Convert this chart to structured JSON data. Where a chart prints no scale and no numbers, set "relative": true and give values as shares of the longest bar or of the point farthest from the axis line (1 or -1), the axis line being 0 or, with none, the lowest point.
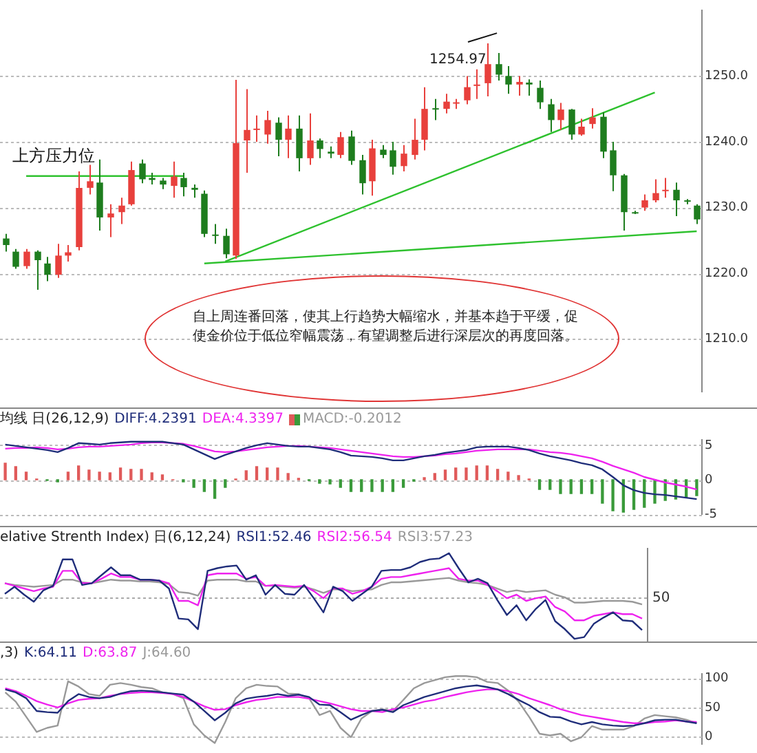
{
  "chart_data": [
    {
      "type": "candlestick",
      "grid": "y",
      "ylim": [
        1202,
        1260
      ],
      "yticks": [
        {
          "value": 1210,
          "label": "1210.0"
        },
        {
          "value": 1220,
          "label": "1220.0"
        },
        {
          "value": 1230,
          "label": "1230.0"
        },
        {
          "value": 1240,
          "label": "1240.0"
        },
        {
          "value": 1250,
          "label": "1250.0"
        }
      ],
      "categories": [
        null,
        null,
        null,
        null,
        null,
        null,
        null,
        null,
        null,
        null,
        null,
        null,
        null,
        null,
        null,
        null,
        null,
        null,
        null,
        null,
        null,
        null,
        null,
        null,
        null,
        null,
        null,
        null,
        null,
        null,
        null,
        null,
        null,
        null,
        null,
        null,
        null,
        null,
        null,
        null,
        null,
        null,
        null,
        null,
        null,
        null,
        null,
        null,
        null,
        null,
        null,
        null,
        null,
        null,
        null,
        null,
        null,
        null,
        null,
        null,
        null,
        null,
        null,
        null,
        null,
        null,
        null
      ],
      "ohlc": [
        [
          1225.3,
          1226,
          1223.3,
          1224.3
        ],
        [
          1223.3,
          1223.7,
          1220.7,
          1221
        ],
        [
          1221.1,
          1223.7,
          1220.7,
          1223.3
        ],
        [
          1223.3,
          1223.5,
          1217.5,
          1222
        ],
        [
          1221.5,
          1222.5,
          1218.8,
          1219.8
        ],
        [
          1219.8,
          1224.5,
          1219.3,
          1222.7
        ],
        [
          1222.7,
          1224.3,
          1221.8,
          1223.2
        ],
        [
          1224,
          1235.5,
          1223.5,
          1233
        ],
        [
          1233,
          1236.5,
          1232,
          1234
        ],
        [
          1233.8,
          1237.3,
          1226.5,
          1228.5
        ],
        [
          1228.5,
          1230.5,
          1225.5,
          1229.1
        ],
        [
          1229.3,
          1231.5,
          1227.5,
          1230.3
        ],
        [
          1230.5,
          1237,
          1230.3,
          1235.7
        ],
        [
          1236.7,
          1237.3,
          1233.7,
          1234.3
        ],
        [
          1234.5,
          1235.3,
          1233.5,
          1234.2
        ],
        [
          1234.1,
          1234.5,
          1232.8,
          1233.5
        ],
        [
          1233.3,
          1237,
          1231.5,
          1234.7
        ],
        [
          1234.5,
          1235.3,
          1231.7,
          1233.1
        ],
        [
          1233,
          1233.5,
          1231.5,
          1232.7
        ],
        [
          1232.1,
          1232.6,
          1225.5,
          1226
        ],
        [
          1225.9,
          1227.5,
          1224.5,
          1225.7
        ],
        [
          1225.7,
          1226.8,
          1222.3,
          1222.9
        ],
        [
          1222.7,
          1249.4,
          1222.2,
          1239.8
        ],
        [
          1240.2,
          1248,
          1235.3,
          1241.8
        ],
        [
          1241.9,
          1244,
          1240,
          1242
        ],
        [
          1241.1,
          1244.7,
          1239.7,
          1243.3
        ],
        [
          1242.9,
          1243.7,
          1237.8,
          1240.3
        ],
        [
          1240.3,
          1244,
          1237.5,
          1242
        ],
        [
          1242,
          1244,
          1235.5,
          1237.5
        ],
        [
          1237.5,
          1244.3,
          1236.5,
          1240.2
        ],
        [
          1240.2,
          1240.5,
          1237.5,
          1238.9
        ],
        [
          1238.5,
          1239.3,
          1237.5,
          1238.2
        ],
        [
          1238,
          1241.5,
          1237.5,
          1240.7
        ],
        [
          1240.8,
          1241.7,
          1236.5,
          1237.1
        ],
        [
          1237.2,
          1238,
          1232,
          1233.7
        ],
        [
          1234,
          1240.3,
          1231.8,
          1239
        ],
        [
          1238.8,
          1239.5,
          1237.5,
          1238
        ],
        [
          1238.7,
          1240,
          1235,
          1236.2
        ],
        [
          1236.3,
          1239.5,
          1235.5,
          1238.2
        ],
        [
          1238,
          1243.5,
          1237.3,
          1240.3
        ],
        [
          1240.3,
          1248.3,
          1238.7,
          1245
        ],
        [
          1245.1,
          1246.5,
          1243.3,
          1245
        ],
        [
          1245,
          1247.3,
          1244.3,
          1246.1
        ],
        [
          1245.9,
          1246.5,
          1245,
          1246
        ],
        [
          1246.3,
          1250,
          1245.7,
          1248.3
        ],
        [
          1248.5,
          1251,
          1246.5,
          1248.7
        ],
        [
          1248.9,
          1254.97,
          1246.9,
          1251.8
        ],
        [
          1251.8,
          1253.5,
          1249.3,
          1250.2
        ],
        [
          1250,
          1251.5,
          1247.3,
          1248.7
        ],
        [
          1248.7,
          1250,
          1247,
          1249.1
        ],
        [
          1249,
          1249.5,
          1247,
          1248.7
        ],
        [
          1248.2,
          1249.3,
          1245,
          1246
        ],
        [
          1245.7,
          1246.5,
          1241.5,
          1243.3
        ],
        [
          1243.3,
          1245.9,
          1241.8,
          1244.9
        ],
        [
          1244.9,
          1245,
          1240.3,
          1241.1
        ],
        [
          1241.1,
          1243.5,
          1240.9,
          1242.3
        ],
        [
          1242.7,
          1245.1,
          1242,
          1243.7
        ],
        [
          1243.8,
          1244.5,
          1237.5,
          1238.5
        ],
        [
          1238.7,
          1240,
          1232.5,
          1234.9
        ],
        [
          1234.9,
          1235.1,
          1226.5,
          1229.3
        ],
        [
          1229.3,
          1229.5,
          1229,
          1229.1
        ],
        [
          1230,
          1232,
          1229.5,
          1231.1
        ],
        [
          1231.1,
          1234.3,
          1230.8,
          1232.2
        ],
        [
          1232.5,
          1234.5,
          1231.5,
          1232.7
        ],
        [
          1232.7,
          1233.8,
          1228.7,
          1231.1
        ],
        [
          1231.1,
          1231.3,
          1230.5,
          1230.9
        ],
        [
          1230.3,
          1230.5,
          1227.5,
          1228.2
        ]
      ],
      "colors": [
        "#1e7d1e",
        "#1e7d1e",
        "#e8403c",
        "#1e7d1e",
        "#1e7d1e",
        "#e8403c",
        "#e8403c",
        "#e8403c",
        "#e8403c",
        "#1e7d1e",
        "#e8403c",
        "#e8403c",
        "#e8403c",
        "#1e7d1e",
        "#1e7d1e",
        "#1e7d1e",
        "#e8403c",
        "#1e7d1e",
        "#1e7d1e",
        "#1e7d1e",
        "#1e7d1e",
        "#1e7d1e",
        "#e8403c",
        "#e8403c",
        "#e8403c",
        "#e8403c",
        "#1e7d1e",
        "#e8403c",
        "#1e7d1e",
        "#e8403c",
        "#1e7d1e",
        "#1e7d1e",
        "#e8403c",
        "#1e7d1e",
        "#1e7d1e",
        "#e8403c",
        "#1e7d1e",
        "#1e7d1e",
        "#e8403c",
        "#e8403c",
        "#e8403c",
        "#1e7d1e",
        "#e8403c",
        "#e8403c",
        "#e8403c",
        "#e8403c",
        "#e8403c",
        "#1e7d1e",
        "#1e7d1e",
        "#e8403c",
        "#1e7d1e",
        "#1e7d1e",
        "#1e7d1e",
        "#e8403c",
        "#1e7d1e",
        "#e8403c",
        "#e8403c",
        "#1e7d1e",
        "#1e7d1e",
        "#1e7d1e",
        "#1e7d1e",
        "#e8403c",
        "#e8403c",
        "#e8403c",
        "#1e7d1e",
        "#1e7d1e",
        "#1e7d1e"
      ],
      "marker": "none",
      "series": [
        {
          "type": "line",
          "color": "#2ec12e",
          "values": [
            null,
            null,
            1234.8,
            null,
            null,
            null,
            null,
            null,
            null,
            null,
            null,
            null,
            null,
            null,
            null,
            null,
            null,
            1234.8,
            null,
            null,
            null,
            null,
            null,
            null,
            null,
            null,
            null,
            null,
            null,
            null,
            null,
            null,
            null,
            null,
            null,
            null,
            null,
            null,
            null,
            null,
            null,
            null,
            null,
            null,
            null,
            null,
            null,
            null,
            null,
            null,
            null,
            null,
            null,
            null,
            null,
            null,
            null,
            null,
            null,
            null,
            null,
            null,
            null,
            null,
            null,
            null,
            null
          ]
        },
        {
          "type": "line",
          "color": "#2ec12e",
          "values": [
            null,
            null,
            null,
            null,
            null,
            null,
            null,
            null,
            null,
            null,
            null,
            null,
            null,
            null,
            null,
            null,
            null,
            null,
            null,
            null,
            null,
            1221.8,
            null,
            null,
            null,
            null,
            null,
            null,
            null,
            null,
            null,
            null,
            null,
            null,
            null,
            null,
            null,
            null,
            null,
            null,
            null,
            null,
            null,
            null,
            null,
            null,
            null,
            null,
            null,
            null,
            null,
            null,
            null,
            null,
            null,
            null,
            null,
            null,
            null,
            null,
            null,
            null,
            1247.5,
            null,
            null,
            null,
            null
          ]
        },
        {
          "type": "line",
          "color": "#2ec12e",
          "values": [
            null,
            null,
            null,
            null,
            null,
            null,
            null,
            null,
            null,
            null,
            null,
            null,
            null,
            null,
            null,
            null,
            null,
            null,
            null,
            1221.5,
            null,
            null,
            null,
            null,
            null,
            null,
            null,
            null,
            null,
            null,
            null,
            null,
            null,
            null,
            null,
            null,
            null,
            null,
            null,
            null,
            null,
            null,
            null,
            null,
            null,
            null,
            null,
            null,
            null,
            null,
            null,
            null,
            null,
            null,
            null,
            null,
            null,
            null,
            null,
            null,
            null,
            null,
            null,
            null,
            null,
            null,
            1226.4
          ]
        }
      ],
      "annotations": [
        "1254.97",
        {
          "text": "上方压力位",
          "y": 1234.8
        },
        "自上周连番回落，使其上行趋势大幅缩水，并基本趋于平缓，促使金价位于低位窄幅震荡，有望调整后进行深层次的再度回落。"
      ]
    },
    {
      "type": "line",
      "title": "均线 日(26,12,9)",
      "legend": "top left",
      "grid": "y",
      "marker": "none",
      "ylim": [
        -5,
        5.8
      ],
      "yticks": [
        -5,
        0,
        5
      ],
      "categories": [
        null,
        null,
        null,
        null,
        null,
        null,
        null,
        null,
        null,
        null,
        null,
        null,
        null,
        null,
        null,
        null,
        null,
        null,
        null,
        null,
        null,
        null,
        null,
        null,
        null,
        null,
        null,
        null,
        null,
        null,
        null,
        null,
        null,
        null,
        null,
        null,
        null,
        null,
        null,
        null,
        null,
        null,
        null,
        null,
        null,
        null,
        null,
        null,
        null,
        null,
        null,
        null,
        null,
        null,
        null,
        null,
        null,
        null,
        null,
        null,
        null,
        null,
        null,
        null,
        null,
        null,
        null
      ],
      "series": [
        {
          "name": "DIFF:4.2391",
          "color": "#1f2d7a",
          "values": [
            5.1,
            4.9,
            4.7,
            4.5,
            4.3,
            4.0,
            4.6,
            5.3,
            5.2,
            5.1,
            5.3,
            5.4,
            5.5,
            5.5,
            5.5,
            5.5,
            5.3,
            5.1,
            4.4,
            3.7,
            3.0,
            3.6,
            4.1,
            4.6,
            5.0,
            5.3,
            5.1,
            4.9,
            4.8,
            4.8,
            4.6,
            4.4,
            4.0,
            3.5,
            3.4,
            3.3,
            3.1,
            2.8,
            2.8,
            3.1,
            3.4,
            3.6,
            3.9,
            4.1,
            4.3,
            4.7,
            4.8,
            4.8,
            4.8,
            4.6,
            4.3,
            3.8,
            3.4,
            3.1,
            2.8,
            2.4,
            2.1,
            1.5,
            0.4,
            -0.8,
            -1.5,
            -1.9,
            -2.1,
            -2.2,
            -2.4,
            -2.6,
            -2.8
          ]
        },
        {
          "name": "DEA:4.3397",
          "color": "#ee22ee",
          "values": [
            4.5,
            4.6,
            4.6,
            4.7,
            4.6,
            4.4,
            4.5,
            4.7,
            4.8,
            4.8,
            4.9,
            5.0,
            5.1,
            5.3,
            5.4,
            5.4,
            5.3,
            5.2,
            4.9,
            4.5,
            4.1,
            4.0,
            4.1,
            4.3,
            4.5,
            4.7,
            4.8,
            4.9,
            4.9,
            4.8,
            4.7,
            4.6,
            4.4,
            4.2,
            4.0,
            3.8,
            3.6,
            3.4,
            3.3,
            3.3,
            3.4,
            3.5,
            3.7,
            3.8,
            4.0,
            4.2,
            4.3,
            4.4,
            4.4,
            4.4,
            4.4,
            4.2,
            4.0,
            3.9,
            3.7,
            3.4,
            3.1,
            2.6,
            2.0,
            1.5,
            1.0,
            0.4,
            0.0,
            -0.4,
            -0.7,
            -1.0,
            -1.4
          ]
        },
        {
          "name": "MACD:-0.2012",
          "type": "bar",
          "color": "#999999",
          "values": [
            2.4,
            1.9,
            1.1,
            0.1,
            -0.1,
            -0.3,
            1.1,
            2.0,
            1.4,
            1.1,
            1.0,
            1.7,
            1.5,
            1.5,
            1.0,
            0.7,
            0,
            -0.3,
            -1.1,
            -1.7,
            -2.7,
            -1.1,
            0.1,
            1.3,
            1.9,
            1.7,
            1.7,
            0.9,
            0.2,
            -0.1,
            -0.5,
            -0.6,
            -1.1,
            -1.7,
            -1.7,
            -1.7,
            -1.7,
            -1.7,
            -1.1,
            -0.2,
            0.3,
            0.9,
            1.4,
            1.7,
            1.7,
            2.0,
            2.0,
            1.5,
            1.1,
            0.6,
            0.1,
            -1.4,
            -1.4,
            -2.0,
            -2.0,
            -2.0,
            -2.0,
            -3.4,
            -4.5,
            -4.7,
            -4.3,
            -4.0,
            -3.4,
            -3.0,
            -2.8,
            -2.5,
            -2.3
          ],
          "colors": [
            "#e05a5a",
            "#e05a5a",
            "#e05a5a",
            "#e05a5a",
            "#3a9a3a",
            "#3a9a3a",
            "#e05a5a",
            "#e05a5a",
            "#e05a5a",
            "#e05a5a",
            "#e05a5a",
            "#e05a5a",
            "#e05a5a",
            "#e05a5a",
            "#e05a5a",
            "#e05a5a",
            "#e05a5a",
            "#3a9a3a",
            "#3a9a3a",
            "#3a9a3a",
            "#3a9a3a",
            "#3a9a3a",
            "#e05a5a",
            "#e05a5a",
            "#e05a5a",
            "#e05a5a",
            "#e05a5a",
            "#e05a5a",
            "#e05a5a",
            "#3a9a3a",
            "#3a9a3a",
            "#3a9a3a",
            "#3a9a3a",
            "#3a9a3a",
            "#3a9a3a",
            "#3a9a3a",
            "#3a9a3a",
            "#3a9a3a",
            "#3a9a3a",
            "#3a9a3a",
            "#e05a5a",
            "#e05a5a",
            "#e05a5a",
            "#e05a5a",
            "#e05a5a",
            "#e05a5a",
            "#e05a5a",
            "#e05a5a",
            "#e05a5a",
            "#e05a5a",
            "#e05a5a",
            "#3a9a3a",
            "#3a9a3a",
            "#3a9a3a",
            "#3a9a3a",
            "#3a9a3a",
            "#3a9a3a",
            "#3a9a3a",
            "#3a9a3a",
            "#3a9a3a",
            "#3a9a3a",
            "#3a9a3a",
            "#3a9a3a",
            "#3a9a3a",
            "#3a9a3a",
            "#3a9a3a",
            "#3a9a3a"
          ]
        }
      ]
    },
    {
      "type": "line",
      "title": "elative Strenth Index) 日(6,12,24)",
      "legend": "top",
      "relative": true,
      "marker": "none",
      "ref_lines": [
        {
          "axis": "y",
          "value": 0.5,
          "label": "50",
          "color": "#aaaaaa",
          "line_style": "dotted"
        }
      ],
      "categories": [
        null,
        null,
        null,
        null,
        null,
        null,
        null,
        null,
        null,
        null,
        null,
        null,
        null,
        null,
        null,
        null,
        null,
        null,
        null,
        null,
        null,
        null,
        null,
        null,
        null,
        null,
        null,
        null,
        null,
        null,
        null,
        null,
        null,
        null,
        null,
        null,
        null,
        null,
        null,
        null,
        null,
        null,
        null,
        null,
        null,
        null,
        null,
        null,
        null,
        null,
        null,
        null,
        null,
        null,
        null,
        null,
        null,
        null,
        null,
        null,
        null,
        null,
        null,
        null,
        null,
        null,
        null
      ],
      "series": [
        {
          "name": "RSI1:52.46",
          "color": "#1f2d7a",
          "values": [
            0.54,
            0.62,
            0.53,
            0.45,
            0.58,
            0.63,
            0.93,
            0.93,
            0.64,
            0.66,
            0.75,
            0.84,
            0.75,
            0.75,
            0.7,
            0.7,
            0.69,
            0.6,
            0.26,
            0.25,
            0.14,
            0.8,
            0.83,
            0.85,
            0.86,
            0.7,
            0.75,
            0.53,
            0.64,
            0.54,
            0.53,
            0.64,
            0.49,
            0.33,
            0.62,
            0.57,
            0.46,
            0.54,
            0.62,
            0.8,
            0.81,
            0.81,
            0.84,
            0.9,
            0.93,
            0.94,
            1,
            0.83,
            0.67,
            0.71,
            0.66,
            0.47,
            0.3,
            0.41,
            0.24,
            0.37,
            0.47,
            0.23,
            0.14,
            0.03,
            0.05,
            0.2,
            0.27,
            0.33,
            0.24,
            0.23,
            0.13
          ]
        },
        {
          "name": "RSI2:56.54",
          "color": "#ee22ee",
          "values": [
            0.66,
            0.63,
            0.6,
            0.57,
            0.6,
            0.62,
            0.8,
            0.8,
            0.66,
            0.66,
            0.71,
            0.77,
            0.73,
            0.73,
            0.7,
            0.7,
            0.69,
            0.66,
            0.46,
            0.46,
            0.41,
            0.75,
            0.77,
            0.77,
            0.77,
            0.71,
            0.73,
            0.63,
            0.64,
            0.63,
            0.62,
            0.63,
            0.57,
            0.49,
            0.6,
            0.6,
            0.54,
            0.57,
            0.62,
            0.71,
            0.73,
            0.73,
            0.75,
            0.77,
            0.79,
            0.81,
            0.83,
            0.71,
            0.69,
            0.69,
            0.64,
            0.57,
            0.49,
            0.53,
            0.46,
            0.49,
            0.51,
            0.39,
            0.34,
            0.24,
            0.24,
            0.29,
            0.31,
            0.33,
            0.31,
            0.31,
            0.26
          ]
        },
        {
          "name": "RSI3:57.23",
          "color": "#999999",
          "values": [
            0.66,
            0.64,
            0.63,
            0.62,
            0.63,
            0.64,
            0.7,
            0.7,
            0.67,
            0.66,
            0.68,
            0.7,
            0.69,
            0.69,
            0.68,
            0.68,
            0.67,
            0.65,
            0.56,
            0.55,
            0.52,
            0.69,
            0.7,
            0.7,
            0.7,
            0.68,
            0.68,
            0.63,
            0.63,
            0.62,
            0.61,
            0.62,
            0.59,
            0.55,
            0.59,
            0.59,
            0.57,
            0.58,
            0.59,
            0.64,
            0.67,
            0.67,
            0.68,
            0.69,
            0.7,
            0.71,
            0.72,
            0.69,
            0.67,
            0.66,
            0.64,
            0.6,
            0.56,
            0.58,
            0.56,
            0.57,
            0.58,
            0.53,
            0.5,
            0.44,
            0.44,
            0.45,
            0.46,
            0.46,
            0.46,
            0.45,
            0.42
          ]
        }
      ]
    },
    {
      "type": "line",
      "title": ",3)",
      "legend": "top left",
      "grid": "y",
      "marker": "none",
      "ylim": [
        -13,
        108
      ],
      "yticks": [
        0,
        50,
        100
      ],
      "categories": [
        null,
        null,
        null,
        null,
        null,
        null,
        null,
        null,
        null,
        null,
        null,
        null,
        null,
        null,
        null,
        null,
        null,
        null,
        null,
        null,
        null,
        null,
        null,
        null,
        null,
        null,
        null,
        null,
        null,
        null,
        null,
        null,
        null,
        null,
        null,
        null,
        null,
        null,
        null,
        null,
        null,
        null,
        null,
        null,
        null,
        null,
        null,
        null,
        null,
        null,
        null,
        null,
        null,
        null,
        null,
        null,
        null,
        null,
        null,
        null,
        null,
        null,
        null,
        null,
        null,
        null,
        null
      ],
      "series": [
        {
          "name": "K:64.11",
          "color": "#1f2d7a",
          "values": [
            81,
            76,
            66,
            44,
            42,
            41,
            61,
            73,
            68,
            66,
            68,
            74,
            78,
            79,
            78,
            76,
            74,
            72,
            60,
            44,
            28,
            41,
            57,
            65,
            68,
            70,
            73,
            70,
            72,
            68,
            55,
            54,
            42,
            29,
            37,
            44,
            46,
            42,
            54,
            61,
            68,
            73,
            78,
            83,
            86,
            88,
            85,
            81,
            73,
            63,
            54,
            42,
            34,
            33,
            26,
            21,
            25,
            21,
            19,
            18,
            19,
            23,
            28,
            29,
            29,
            26,
            23
          ]
        },
        {
          "name": "D:63.87",
          "color": "#ee22ee",
          "values": [
            83,
            78,
            70,
            61,
            55,
            50,
            57,
            63,
            65,
            66,
            70,
            73,
            75,
            76,
            76,
            75,
            73,
            68,
            60,
            52,
            46,
            47,
            54,
            59,
            63,
            65,
            68,
            68,
            68,
            65,
            61,
            57,
            52,
            47,
            44,
            44,
            42,
            47,
            50,
            55,
            60,
            63,
            68,
            72,
            76,
            79,
            81,
            81,
            78,
            73,
            66,
            60,
            54,
            47,
            42,
            37,
            34,
            31,
            28,
            25,
            23,
            23,
            25,
            26,
            28,
            26,
            25
          ]
        },
        {
          "name": "J:64.60",
          "color": "#999999",
          "values": [
            76,
            60,
            34,
            8,
            15,
            19,
            95,
            86,
            73,
            70,
            89,
            92,
            89,
            85,
            83,
            76,
            73,
            66,
            21,
            2,
            -11,
            25,
            66,
            83,
            89,
            87,
            86,
            74,
            73,
            66,
            37,
            44,
            15,
            -1,
            31,
            44,
            47,
            44,
            63,
            83,
            92,
            97,
            102,
            104,
            104,
            102,
            94,
            92,
            79,
            60,
            34,
            5,
            2,
            5,
            -8,
            -1,
            18,
            12,
            12,
            12,
            18,
            31,
            37,
            35,
            33,
            29,
            23
          ]
        }
      ]
    }
  ]
}
